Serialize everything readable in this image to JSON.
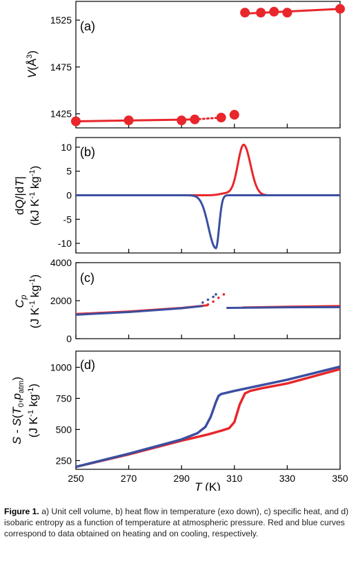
{
  "colors": {
    "heating": "#e8262b",
    "cooling": "#3b4fa0",
    "axis": "#000000"
  },
  "caption": {
    "lead": "Figure 1.",
    "text": "a) Unit cell volume, b) heat flow in temperature (exo down), c) specific heat, and d) isobaric entropy as a function of temperature at atmospheric pressure. Red and blue curves correspond to data obtained on heating and on cooling, respectively."
  },
  "chart_data": [
    {
      "panel": "(a)",
      "type": "scatter",
      "ylabel_main": "V",
      "ylabel_unit": "(Å",
      "ylabel_sup": "3",
      "ylabel_close": ")",
      "xlim": [
        250,
        350
      ],
      "ylim": [
        1410,
        1545
      ],
      "yticks": [
        1425,
        1475,
        1525
      ],
      "yticklabels": [
        "1425",
        "1475",
        "1525"
      ],
      "series": [
        {
          "color": "heating",
          "points": [
            [
              250,
              1417
            ],
            [
              270,
              1418
            ],
            [
              290,
              1418
            ],
            [
              295,
              1419
            ],
            [
              305,
              1421
            ],
            [
              310,
              1424
            ],
            [
              314,
              1533
            ],
            [
              320,
              1533
            ],
            [
              325,
              1534
            ],
            [
              330,
              1533
            ],
            [
              350,
              1537
            ]
          ],
          "segments": [
            {
              "from": 250,
              "to": 295,
              "style": "solid",
              "y": [
                1417,
                1419
              ]
            },
            {
              "from": 295,
              "to": 305,
              "style": "dotted",
              "y": [
                1419,
                1421
              ]
            },
            {
              "from": 314,
              "to": 350,
              "style": "solid",
              "y": [
                1532,
                1537
              ]
            }
          ]
        }
      ]
    },
    {
      "panel": "(b)",
      "type": "line",
      "ylabel_line1_a": "dQ/|d",
      "ylabel_line1_b": "T",
      "ylabel_line1_c": "|",
      "ylabel_line2": "(kJ K",
      "ylabel_line2_sup1": "-1",
      "ylabel_line2_mid": " kg",
      "ylabel_line2_sup2": "-1",
      "ylabel_line2_close": ")",
      "xlim": [
        250,
        350
      ],
      "ylim": [
        -12,
        12
      ],
      "yticks": [
        10,
        5,
        0,
        -5,
        -10
      ],
      "yticklabels": [
        "10",
        "5",
        "0",
        "-5",
        "-10"
      ],
      "series": [
        {
          "color": "heating",
          "baseline": 0,
          "peak": {
            "T": 313.5,
            "value": 10.5,
            "sigma_left": 2.2,
            "sigma_right": 2.6
          },
          "shoulder": {
            "T": 307,
            "value": 0.4
          },
          "range": [
            250,
            350
          ]
        },
        {
          "color": "cooling",
          "baseline": 0,
          "peak": {
            "T": 303,
            "value": -11,
            "sigma_left": 2.8,
            "sigma_right": 1.2
          },
          "range": [
            250,
            350
          ]
        }
      ]
    },
    {
      "panel": "(c)",
      "type": "line",
      "ylabel_main": "C",
      "ylabel_sub": "p",
      "ylabel_line2": "(J K",
      "ylabel_line2_sup1": "-1",
      "ylabel_line2_mid": " kg",
      "ylabel_line2_sup2": "-1",
      "ylabel_line2_close": ")",
      "xlim": [
        250,
        350
      ],
      "ylim": [
        0,
        4000
      ],
      "yticks": [
        0,
        2000,
        4000
      ],
      "yticklabels": [
        "0",
        "2000",
        "4000"
      ],
      "series": [
        {
          "color": "heating",
          "low_branch": {
            "x": [
              250,
              270,
              290,
              300
            ],
            "y": [
              1300,
              1430,
              1620,
              1760
            ]
          },
          "low_dotted": {
            "x": [
              300,
              302,
              304,
              306
            ],
            "y": [
              1800,
              1950,
              2150,
              2330
            ]
          },
          "high_branch": {
            "x": [
              313,
              330,
              350
            ],
            "y": [
              1640,
              1680,
              1720
            ]
          }
        },
        {
          "color": "cooling",
          "low_branch": {
            "x": [
              250,
              270,
              290,
              298
            ],
            "y": [
              1260,
              1400,
              1600,
              1720
            ]
          },
          "low_dotted": {
            "x": [
              298,
              300,
              302,
              303
            ],
            "y": [
              1900,
              2050,
              2200,
              2330
            ]
          },
          "high_branch": {
            "x": [
              307,
              330,
              350
            ],
            "y": [
              1620,
              1650,
              1660
            ]
          }
        }
      ]
    },
    {
      "panel": "(d)",
      "type": "line",
      "ylabel_line1_a": "S",
      "ylabel_line1_b": " - ",
      "ylabel_line1_c": "S",
      "ylabel_line1_d": "(",
      "ylabel_line1_e": "T",
      "ylabel_line1_sub0": "0",
      "ylabel_line1_f": ",",
      "ylabel_line1_g": "p",
      "ylabel_line1_subatm": "atm",
      "ylabel_line1_h": ")",
      "ylabel_line2": "(J K",
      "ylabel_line2_sup1": "-1",
      "ylabel_line2_mid": " kg",
      "ylabel_line2_sup2": "-1",
      "ylabel_line2_close": ")",
      "xlabel_main": "T",
      "xlabel_unit": " (K)",
      "xlim": [
        250,
        350
      ],
      "ylim": [
        180,
        1130
      ],
      "yticks": [
        250,
        500,
        750,
        1000
      ],
      "yticklabels": [
        "250",
        "500",
        "750",
        "1000"
      ],
      "xticks": [
        250,
        270,
        290,
        310,
        330,
        350
      ],
      "xticklabels": [
        "250",
        "270",
        "290",
        "310",
        "330",
        "350"
      ],
      "series": [
        {
          "color": "heating",
          "x": [
            250,
            270,
            290,
            300,
            305,
            308,
            310,
            312,
            314,
            316,
            320,
            330,
            350
          ],
          "y": [
            200,
            300,
            410,
            460,
            490,
            510,
            560,
            700,
            790,
            810,
            830,
            870,
            985
          ]
        },
        {
          "color": "cooling",
          "x": [
            250,
            270,
            290,
            296,
            299,
            301,
            303,
            304,
            305,
            306,
            310,
            330,
            350
          ],
          "y": [
            200,
            305,
            420,
            470,
            520,
            600,
            720,
            770,
            785,
            790,
            810,
            900,
            1005
          ]
        }
      ]
    }
  ]
}
